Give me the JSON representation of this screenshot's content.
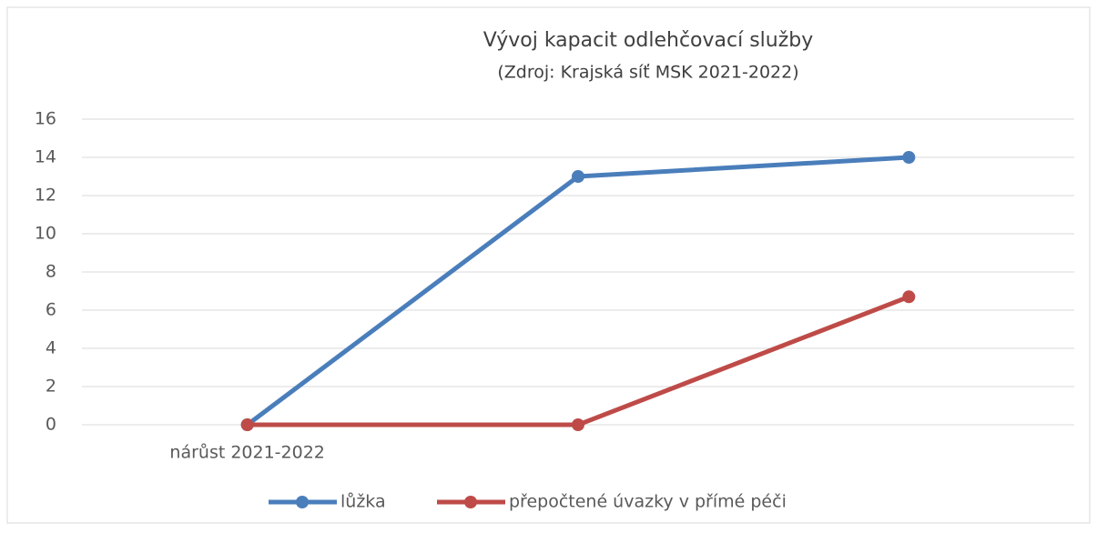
{
  "chart_data": {
    "type": "line",
    "title": "Vývoj kapacit odlehčovací služby",
    "subtitle": "(Zdroj: Krajská síť MSK 2021-2022)",
    "categories": [
      "nárůst 2021-2022",
      null,
      null
    ],
    "series": [
      {
        "name": "lůžka",
        "color": "#4a7ebb",
        "values": [
          0,
          13,
          14
        ]
      },
      {
        "name": "přepočtené úvazky v přímé péči",
        "color": "#be4b48",
        "values": [
          0,
          0,
          6.7
        ]
      }
    ],
    "ylim": [
      0,
      16
    ],
    "yticks": [
      0,
      2,
      4,
      6,
      8,
      10,
      12,
      14,
      16
    ],
    "grid": true,
    "legend": "bottom"
  }
}
